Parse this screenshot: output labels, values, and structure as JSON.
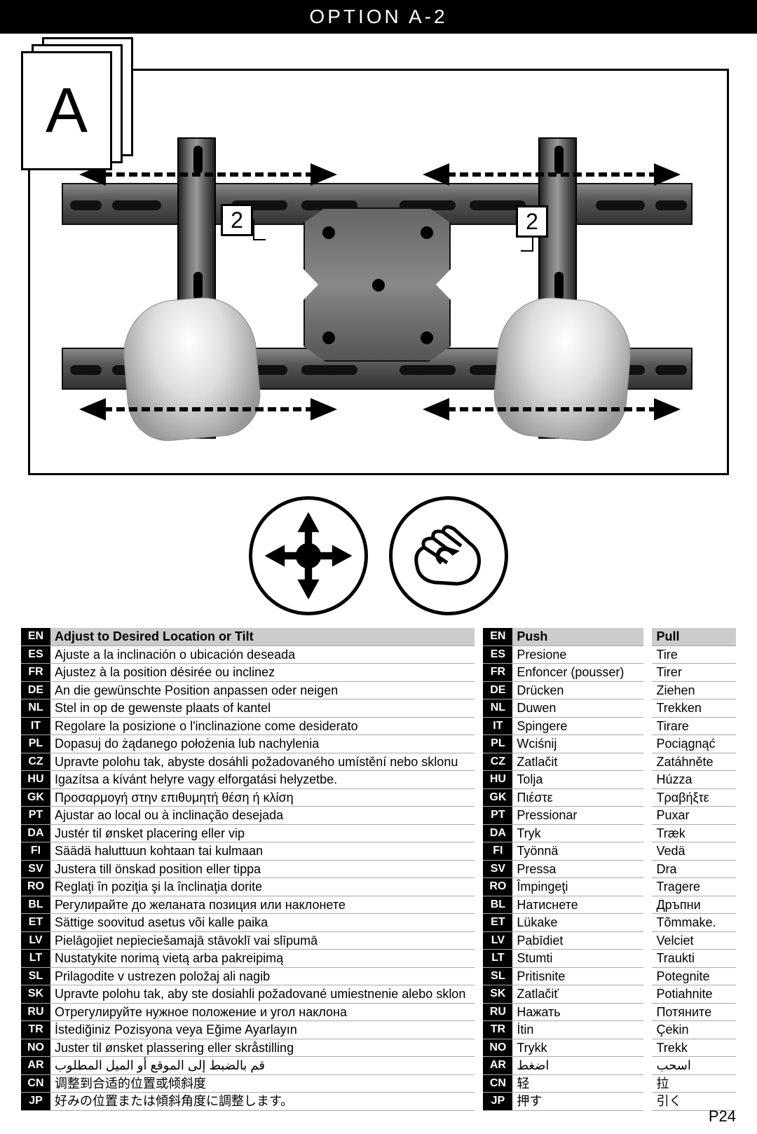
{
  "title": "OPTION A-2",
  "page_label": "A",
  "callout_number": "2",
  "page_number": "P24",
  "languages": [
    "EN",
    "ES",
    "FR",
    "DE",
    "NL",
    "IT",
    "PL",
    "CZ",
    "HU",
    "GK",
    "PT",
    "DA",
    "FI",
    "SV",
    "RO",
    "BL",
    "ET",
    "LV",
    "LT",
    "SL",
    "SK",
    "RU",
    "TR",
    "NO",
    "AR",
    "CN",
    "JP"
  ],
  "adjust": {
    "header": "Adjust to Desired Location or Tilt",
    "rows": [
      "Ajuste a la inclinación o ubicación deseada",
      "Ajustez à la position désirée ou inclinez",
      "An die gewünschte Position anpassen oder neigen",
      "Stel in op de gewenste plaats of kantel",
      "Regolare la posizione o l'inclinazione come desiderato",
      "Dopasuj do żądanego położenia lub nachylenia",
      "Upravte polohu tak, abyste dosáhli požadovaného umístění nebo sklonu",
      "Igazítsa a kívánt helyre vagy elforgatási helyzetbe.",
      "Προσαρμογή στην επιθυμητή θέση ή κλίση",
      "Ajustar ao local ou à inclinação  desejada",
      "Justér til ønsket placering eller vip",
      "Säädä haluttuun kohtaan tai kulmaan",
      "Justera till önskad position eller tippa",
      "Reglaţi în poziţia şi la înclinaţia dorite",
      "Регулирайте до желаната позиция или наклонете",
      "Sättige soovitud asetus või kalle paika",
      "Pielāgojiet nepieciešamajā stāvoklī vai slīpumā",
      "Nustatykite norimą vietą arba pakreipimą",
      "Prilagodite v ustrezen položaj ali nagib",
      "Upravte polohu tak, aby ste dosiahli požadované umiestnenie alebo sklon",
      "Отрегулируйте нужное положение и угол наклона",
      "İstediğiniz Pozisyona veya Eğime Ayarlayın",
      "Juster til ønsket plassering eller skråstilling",
      "قم بالضبط إلى الموقع أو الميل المطلوب",
      "调整到合适的位置或倾斜度",
      "好みの位置または傾斜角度に調整します。"
    ]
  },
  "push": {
    "header": "Push",
    "rows": [
      "Presione",
      "Enfoncer (pousser)",
      "Drücken",
      "Duwen",
      "Spingere",
      "Wciśnij",
      "Zatlačit",
      "Tolja",
      "Πιέστε",
      "Pressionar",
      "Tryk",
      "Työnnä",
      "Pressa",
      "Împingeţi",
      "Натиснете",
      "Lükake",
      "Pabīdiet",
      "Stumti",
      "Pritisnite",
      "Zatlačiť",
      "Нажать",
      "İtin",
      "Trykk",
      "اضغط",
      "轻",
      "押す"
    ]
  },
  "pull": {
    "header": "Pull",
    "rows": [
      "Tire",
      "Tirer",
      "Ziehen",
      "Trekken",
      "Tirare",
      "Pociągnąć",
      "Zatáhněte",
      "Húzza",
      "Τραβήξτε",
      "Puxar",
      "Træk",
      "Vedä",
      "Dra",
      "Tragere",
      "Дръпни",
      "Tõmmake.",
      "Velciet",
      "Traukti",
      "Potegnite",
      "Potiahnite",
      "Потяните",
      "Çekin",
      "Trekk",
      "اسحب",
      "拉",
      "引く"
    ]
  },
  "colors": {
    "black": "#000000",
    "grey": "#cccccc"
  }
}
